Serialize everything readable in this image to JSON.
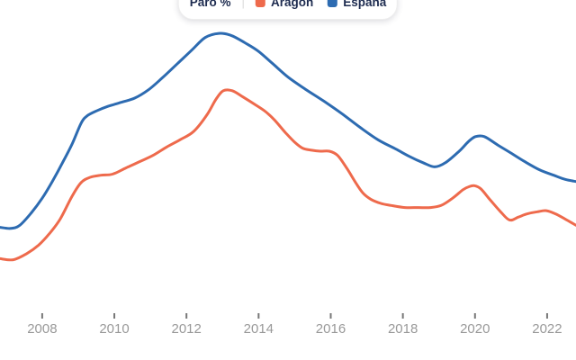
{
  "legend": {
    "title": "Paro %",
    "separator": "|",
    "items": [
      {
        "id": "aragon",
        "label": "Aragón",
        "color": "#ee6a4c"
      },
      {
        "id": "espana",
        "label": "España",
        "color": "#2d6bb1"
      }
    ]
  },
  "axis": {
    "tick_color": "#777777",
    "label_color": "#999999"
  },
  "chart_data": {
    "type": "line",
    "title": "Paro %",
    "unit": "%",
    "grid": false,
    "legend_position": "top-center, pill partially cut off by top edge",
    "xlabel": "",
    "ylabel": "",
    "xlim": [
      2006.83,
      2022.8
    ],
    "ylim": [
      0,
      30.2
    ],
    "x_ticks": [
      2008,
      2010,
      2012,
      2014,
      2016,
      2018,
      2020,
      2022
    ],
    "x_tick_labels": [
      "2008",
      "2010",
      "2012",
      "2014",
      "2016",
      "2018",
      "2020",
      "2022"
    ],
    "series": [
      {
        "id": "espana",
        "name": "España",
        "color": "#2d6bb1",
        "points": [
          [
            2006.83,
            8.4
          ],
          [
            2007.13,
            8.3
          ],
          [
            2007.38,
            8.6
          ],
          [
            2007.7,
            9.8
          ],
          [
            2008.0,
            11.2
          ],
          [
            2008.28,
            12.8
          ],
          [
            2008.58,
            14.7
          ],
          [
            2008.83,
            16.4
          ],
          [
            2009.08,
            18.4
          ],
          [
            2009.25,
            19.1
          ],
          [
            2009.53,
            19.6
          ],
          [
            2009.82,
            20.0
          ],
          [
            2010.2,
            20.4
          ],
          [
            2010.57,
            20.8
          ],
          [
            2010.95,
            21.6
          ],
          [
            2011.32,
            22.7
          ],
          [
            2011.75,
            24.1
          ],
          [
            2012.15,
            25.4
          ],
          [
            2012.52,
            26.6
          ],
          [
            2012.9,
            27.0
          ],
          [
            2013.24,
            26.8
          ],
          [
            2013.62,
            26.1
          ],
          [
            2013.99,
            25.3
          ],
          [
            2014.39,
            24.1
          ],
          [
            2014.82,
            22.8
          ],
          [
            2015.32,
            21.6
          ],
          [
            2015.81,
            20.5
          ],
          [
            2016.31,
            19.3
          ],
          [
            2016.81,
            18.0
          ],
          [
            2017.31,
            16.8
          ],
          [
            2017.81,
            15.9
          ],
          [
            2018.18,
            15.2
          ],
          [
            2018.56,
            14.6
          ],
          [
            2018.88,
            14.2
          ],
          [
            2019.18,
            14.6
          ],
          [
            2019.56,
            15.7
          ],
          [
            2019.81,
            16.6
          ],
          [
            2020.01,
            17.1
          ],
          [
            2020.26,
            17.1
          ],
          [
            2020.63,
            16.3
          ],
          [
            2021.01,
            15.5
          ],
          [
            2021.38,
            14.7
          ],
          [
            2021.8,
            13.9
          ],
          [
            2022.18,
            13.4
          ],
          [
            2022.5,
            13.0
          ],
          [
            2022.8,
            12.8
          ]
        ]
      },
      {
        "id": "aragon",
        "name": "Aragón",
        "color": "#ee6a4c",
        "points": [
          [
            2006.83,
            5.4
          ],
          [
            2007.2,
            5.3
          ],
          [
            2007.58,
            5.9
          ],
          [
            2007.9,
            6.7
          ],
          [
            2008.2,
            7.8
          ],
          [
            2008.5,
            9.2
          ],
          [
            2008.83,
            11.4
          ],
          [
            2009.08,
            12.7
          ],
          [
            2009.33,
            13.2
          ],
          [
            2009.63,
            13.4
          ],
          [
            2009.95,
            13.5
          ],
          [
            2010.32,
            14.1
          ],
          [
            2010.7,
            14.7
          ],
          [
            2011.07,
            15.3
          ],
          [
            2011.45,
            16.1
          ],
          [
            2011.82,
            16.8
          ],
          [
            2012.2,
            17.6
          ],
          [
            2012.57,
            19.2
          ],
          [
            2012.82,
            20.7
          ],
          [
            2013.02,
            21.5
          ],
          [
            2013.27,
            21.5
          ],
          [
            2013.57,
            20.9
          ],
          [
            2013.89,
            20.2
          ],
          [
            2014.19,
            19.5
          ],
          [
            2014.44,
            18.7
          ],
          [
            2014.74,
            17.5
          ],
          [
            2014.99,
            16.6
          ],
          [
            2015.22,
            16.0
          ],
          [
            2015.47,
            15.8
          ],
          [
            2015.71,
            15.7
          ],
          [
            2015.96,
            15.7
          ],
          [
            2016.19,
            15.3
          ],
          [
            2016.44,
            14.1
          ],
          [
            2016.69,
            12.7
          ],
          [
            2016.89,
            11.7
          ],
          [
            2017.11,
            11.1
          ],
          [
            2017.39,
            10.7
          ],
          [
            2017.68,
            10.5
          ],
          [
            2018.06,
            10.3
          ],
          [
            2018.43,
            10.3
          ],
          [
            2018.76,
            10.3
          ],
          [
            2019.06,
            10.5
          ],
          [
            2019.38,
            11.2
          ],
          [
            2019.66,
            12.0
          ],
          [
            2019.83,
            12.3
          ],
          [
            2019.98,
            12.4
          ],
          [
            2020.16,
            12.1
          ],
          [
            2020.43,
            11.0
          ],
          [
            2020.71,
            9.9
          ],
          [
            2020.96,
            9.1
          ],
          [
            2021.21,
            9.4
          ],
          [
            2021.45,
            9.7
          ],
          [
            2021.73,
            9.9
          ],
          [
            2021.98,
            10.0
          ],
          [
            2022.23,
            9.7
          ],
          [
            2022.5,
            9.2
          ],
          [
            2022.8,
            8.6
          ]
        ]
      }
    ]
  }
}
